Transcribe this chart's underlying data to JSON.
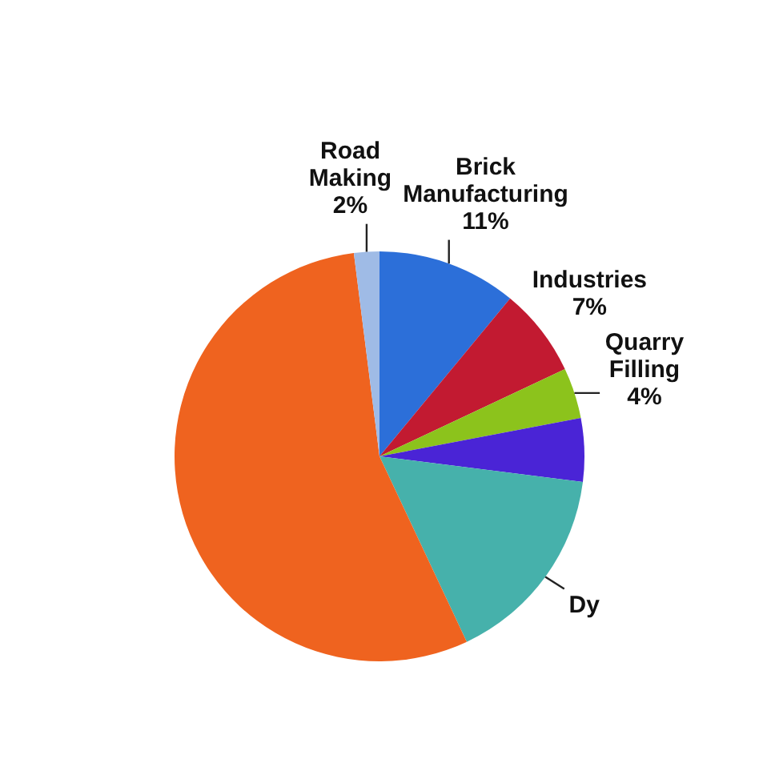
{
  "chart_data": {
    "type": "pie",
    "categories": [
      "Brick Manufacturing",
      "Industries",
      "Quarry Filling",
      null,
      "Dy",
      null,
      "Road Making"
    ],
    "values": [
      11,
      7,
      4,
      5,
      16,
      55,
      2
    ],
    "colors": [
      "#2c6fd9",
      "#c21a31",
      "#8cc31c",
      "#4a24d6",
      "#46b1ab",
      "#ef631f",
      "#9fbbe6"
    ],
    "value_labels": [
      "11%",
      "7%",
      "4%",
      null,
      null,
      null,
      "2%"
    ]
  }
}
